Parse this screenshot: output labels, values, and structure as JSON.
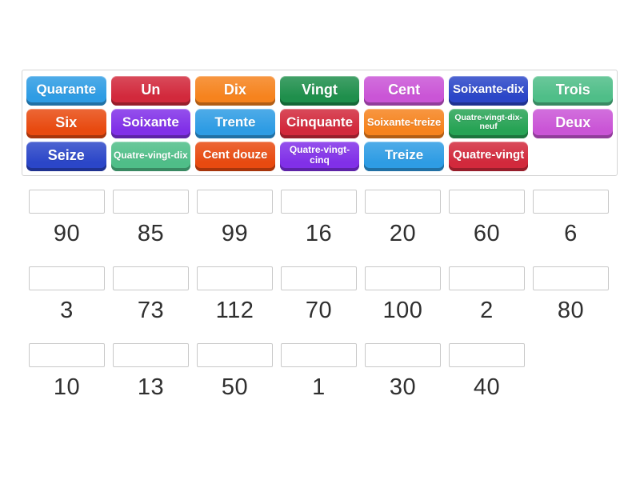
{
  "page": {
    "background_color": "#ffffff",
    "slot_border_color": "#c9c9c9",
    "number_text_color": "#2f2f2f"
  },
  "word_bank": {
    "columns": 7,
    "tiles": [
      {
        "label": "Quarante",
        "color": "#2e9ce4"
      },
      {
        "label": "Un",
        "color": "#d2293c"
      },
      {
        "label": "Dix",
        "color": "#f6831e"
      },
      {
        "label": "Vingt",
        "color": "#1f8f4c"
      },
      {
        "label": "Cent",
        "color": "#ca55d6"
      },
      {
        "label": "Soixante-dix",
        "color": "#2b46c8"
      },
      {
        "label": "Trois",
        "color": "#4fbe88"
      },
      {
        "label": "Six",
        "color": "#e84a10"
      },
      {
        "label": "Soixante",
        "color": "#8130e8"
      },
      {
        "label": "Trente",
        "color": "#2e9ce4"
      },
      {
        "label": "Cinquante",
        "color": "#d2293c"
      },
      {
        "label": "Soixante-treize",
        "color": "#f6831e"
      },
      {
        "label": "Quatre-vingt-dix-neuf",
        "color": "#27a355"
      },
      {
        "label": "Deux",
        "color": "#ca55d6"
      },
      {
        "label": "Seize",
        "color": "#2b46c8"
      },
      {
        "label": "Quatre-vingt-dix",
        "color": "#4fbe88"
      },
      {
        "label": "Cent douze",
        "color": "#e84a10"
      },
      {
        "label": "Quatre-vingt-cinq",
        "color": "#8130e8"
      },
      {
        "label": "Treize",
        "color": "#2e9ce4"
      },
      {
        "label": "Quatre-vingt",
        "color": "#d2293c"
      }
    ]
  },
  "match_rows": [
    {
      "targets": [
        "90",
        "85",
        "99",
        "16",
        "20",
        "60",
        "6"
      ]
    },
    {
      "targets": [
        "3",
        "73",
        "112",
        "70",
        "100",
        "2",
        "80"
      ]
    },
    {
      "targets": [
        "10",
        "13",
        "50",
        "1",
        "30",
        "40"
      ]
    }
  ]
}
